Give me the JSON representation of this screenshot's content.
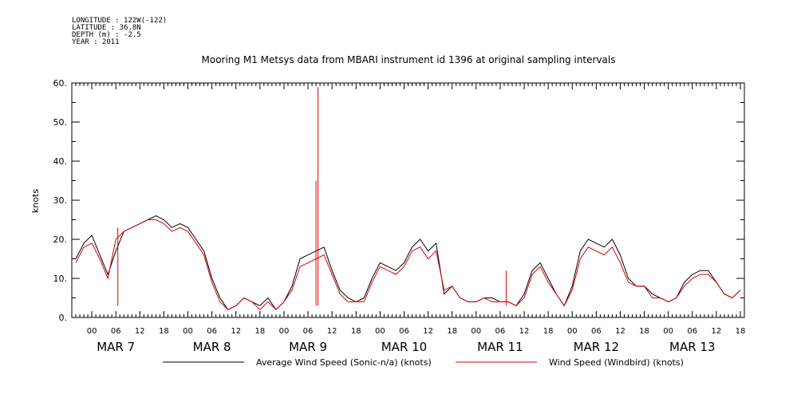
{
  "header": {
    "longitude": "LONGITUDE : 122W(-122)",
    "latitude": "LATITUDE : 36.8N",
    "depth": "DEPTH (m) : -2.5",
    "year": "YEAR : 2011"
  },
  "chart_data": {
    "type": "line",
    "title": "Mooring M1 Metsys data from MBARI instrument id 1396 at original sampling intervals",
    "ylabel": "knots",
    "xlabel": "",
    "ylim": [
      0,
      60
    ],
    "y_ticks": [
      "0.",
      "10.",
      "20.",
      "30.",
      "40.",
      "50.",
      "60."
    ],
    "xlim_hours": [
      -5,
      163
    ],
    "x_hour_ticks": [
      "00",
      "06",
      "12",
      "18",
      "00",
      "06",
      "12",
      "18",
      "00",
      "06",
      "12",
      "18",
      "00",
      "06",
      "12",
      "18",
      "00",
      "06",
      "12",
      "18",
      "00",
      "06",
      "12",
      "18",
      "00",
      "06",
      "12",
      "18"
    ],
    "x_day_labels": [
      "MAR 7",
      "MAR 8",
      "MAR 9",
      "MAR 10",
      "MAR 11",
      "MAR 12",
      "MAR 13"
    ],
    "grid": false,
    "legend_position": "bottom",
    "x_unit": "hours from 00Z MAR 7",
    "series": [
      {
        "name": "Average Wind Speed (Sonic-n/a) (knots)",
        "color": "#000000",
        "x": [
          -4,
          -2,
          0,
          2,
          4,
          6,
          8,
          10,
          12,
          14,
          16,
          18,
          20,
          22,
          24,
          26,
          28,
          30,
          32,
          34,
          36,
          38,
          40,
          42,
          44,
          46,
          48,
          50,
          52,
          54,
          56,
          58,
          60,
          62,
          64,
          66,
          68,
          70,
          72,
          74,
          76,
          78,
          80,
          82,
          84,
          86,
          88,
          90,
          92,
          94,
          96,
          98,
          100,
          102,
          104,
          106,
          108,
          110,
          112,
          114,
          116,
          118,
          120,
          122,
          124,
          126,
          128,
          130,
          132,
          134,
          136,
          138,
          140,
          142,
          144,
          146,
          148,
          150,
          152,
          154,
          156,
          158,
          160,
          162
        ],
        "y": [
          15,
          19,
          21,
          16,
          11,
          17,
          22,
          23,
          24,
          25,
          26,
          25,
          23,
          24,
          23,
          20,
          17,
          10,
          5,
          2,
          3,
          5,
          4,
          3,
          5,
          2,
          4,
          8,
          15,
          16,
          17,
          18,
          12,
          7,
          5,
          4,
          5,
          10,
          14,
          13,
          12,
          14,
          18,
          20,
          17,
          19,
          6,
          8,
          5,
          4,
          4,
          5,
          5,
          4,
          4,
          3,
          6,
          12,
          14,
          10,
          6,
          3,
          8,
          17,
          20,
          19,
          18,
          20,
          16,
          10,
          8,
          8,
          6,
          5,
          4,
          5,
          9,
          11,
          12,
          12,
          9,
          6,
          5,
          7
        ]
      },
      {
        "name": "Wind Speed (Windbird) (knots)",
        "color": "#dd0000",
        "x": [
          -4,
          -2,
          0,
          2,
          4,
          6,
          8,
          10,
          12,
          14,
          16,
          18,
          20,
          22,
          24,
          26,
          28,
          30,
          32,
          34,
          36,
          38,
          40,
          42,
          44,
          46,
          48,
          50,
          52,
          54,
          56,
          58,
          60,
          62,
          64,
          66,
          68,
          70,
          72,
          74,
          76,
          78,
          80,
          82,
          84,
          86,
          88,
          90,
          92,
          94,
          96,
          98,
          100,
          102,
          104,
          106,
          108,
          110,
          112,
          114,
          116,
          118,
          120,
          122,
          124,
          126,
          128,
          130,
          132,
          134,
          136,
          138,
          140,
          142,
          144,
          146,
          148,
          150,
          152,
          154,
          156,
          158,
          160,
          162
        ],
        "y": [
          14,
          18,
          19,
          15,
          10,
          20,
          22,
          23,
          24,
          25,
          25,
          24,
          22,
          23,
          22,
          19,
          16,
          9,
          4,
          2,
          3,
          5,
          4,
          2,
          4,
          2,
          4,
          7,
          13,
          14,
          15,
          16,
          11,
          6,
          4,
          4,
          4,
          9,
          13,
          12,
          11,
          13,
          17,
          18,
          15,
          17,
          7,
          8,
          5,
          4,
          4,
          5,
          4,
          4,
          4,
          3,
          5,
          11,
          13,
          9,
          6,
          3,
          7,
          15,
          18,
          17,
          16,
          18,
          14,
          9,
          8,
          8,
          5,
          5,
          4,
          5,
          8,
          10,
          11,
          11,
          9,
          6,
          5,
          7
        ],
        "spikes": [
          {
            "x": 6.5,
            "y": 23
          },
          {
            "x": 56.5,
            "y": 59
          },
          {
            "x": 56.0,
            "y": 35
          },
          {
            "x": 103.5,
            "y": 12
          }
        ]
      }
    ]
  }
}
